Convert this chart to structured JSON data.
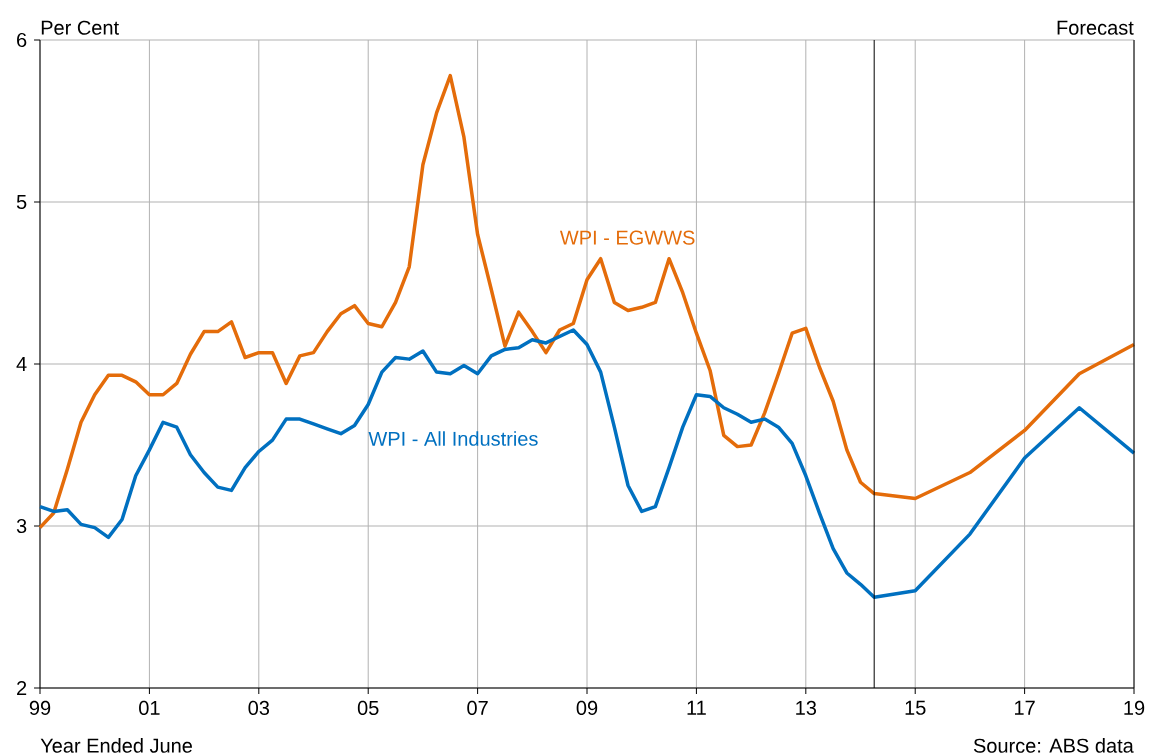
{
  "chart_data": {
    "type": "line",
    "ylabel": "Per Cent",
    "xlabel": "Year Ended June",
    "annotations": [
      "Forecast",
      "Source: ABS data"
    ],
    "x": [
      1999,
      1999.25,
      1999.5,
      1999.75,
      2000,
      2000.25,
      2000.5,
      2000.75,
      2001,
      2001.25,
      2001.5,
      2001.75,
      2002,
      2002.25,
      2002.5,
      2002.75,
      2003,
      2003.25,
      2003.5,
      2003.75,
      2004,
      2004.25,
      2004.5,
      2004.75,
      2005,
      2005.25,
      2005.5,
      2005.75,
      2006,
      2006.25,
      2006.5,
      2006.75,
      2007,
      2007.25,
      2007.5,
      2007.75,
      2008,
      2008.25,
      2008.5,
      2008.75,
      2009,
      2009.25,
      2009.5,
      2009.75,
      2010,
      2010.25,
      2010.5,
      2010.75,
      2011,
      2011.25,
      2011.5,
      2011.75,
      2012,
      2012.25,
      2012.5,
      2012.75,
      2013,
      2013.25,
      2013.5,
      2013.75,
      2014,
      2014.25,
      2015,
      2016,
      2017,
      2018,
      2019
    ],
    "series": [
      {
        "name": "WPI - EGWWS",
        "color": "#e46c0a",
        "values": [
          2.99,
          3.08,
          3.35,
          3.64,
          3.81,
          3.93,
          3.93,
          3.89,
          3.81,
          3.81,
          3.88,
          4.06,
          4.2,
          4.2,
          4.26,
          4.04,
          4.07,
          4.07,
          3.88,
          4.05,
          4.07,
          4.2,
          4.31,
          4.36,
          4.25,
          4.23,
          4.38,
          4.6,
          5.23,
          5.55,
          5.78,
          5.4,
          4.8,
          4.46,
          4.11,
          4.32,
          4.2,
          4.07,
          4.21,
          4.25,
          4.52,
          4.65,
          4.38,
          4.33,
          4.35,
          4.38,
          4.65,
          4.44,
          4.19,
          3.96,
          3.56,
          3.49,
          3.5,
          3.7,
          3.94,
          4.19,
          4.22,
          3.98,
          3.77,
          3.47,
          3.27,
          3.2,
          3.17,
          3.33,
          3.59,
          3.94,
          4.12
        ]
      },
      {
        "name": "WPI - All Industries",
        "color": "#0070c0",
        "values": [
          3.12,
          3.09,
          3.1,
          3.01,
          2.99,
          2.93,
          3.04,
          3.31,
          3.47,
          3.64,
          3.61,
          3.44,
          3.33,
          3.24,
          3.22,
          3.36,
          3.46,
          3.53,
          3.66,
          3.66,
          3.63,
          3.6,
          3.57,
          3.62,
          3.75,
          3.95,
          4.04,
          4.03,
          4.08,
          3.95,
          3.94,
          3.99,
          3.94,
          4.05,
          4.09,
          4.1,
          4.15,
          4.13,
          4.17,
          4.21,
          4.12,
          3.95,
          3.61,
          3.25,
          3.09,
          3.12,
          3.36,
          3.61,
          3.81,
          3.8,
          3.73,
          3.69,
          3.64,
          3.66,
          3.61,
          3.51,
          3.31,
          3.08,
          2.86,
          2.71,
          2.64,
          2.56,
          2.6,
          2.95,
          3.42,
          3.73,
          3.45
        ]
      }
    ],
    "xlim": [
      1999,
      2019
    ],
    "xticks": [
      {
        "value": 1999,
        "label": "99"
      },
      {
        "value": 2001,
        "label": "01"
      },
      {
        "value": 2003,
        "label": "03"
      },
      {
        "value": 2005,
        "label": "05"
      },
      {
        "value": 2007,
        "label": "07"
      },
      {
        "value": 2009,
        "label": "09"
      },
      {
        "value": 2011,
        "label": "11"
      },
      {
        "value": 2013,
        "label": "13"
      },
      {
        "value": 2015,
        "label": "15"
      },
      {
        "value": 2017,
        "label": "17"
      },
      {
        "value": 2019,
        "label": "19"
      }
    ],
    "ylim": [
      2,
      6
    ],
    "yticks": [
      2,
      3,
      4,
      5,
      6
    ],
    "ref_lines": [
      {
        "axis": "x",
        "value": 2014.25,
        "color": "#000000"
      }
    ],
    "grid": true,
    "legend": false,
    "marker": "none",
    "line_style": "solid"
  }
}
